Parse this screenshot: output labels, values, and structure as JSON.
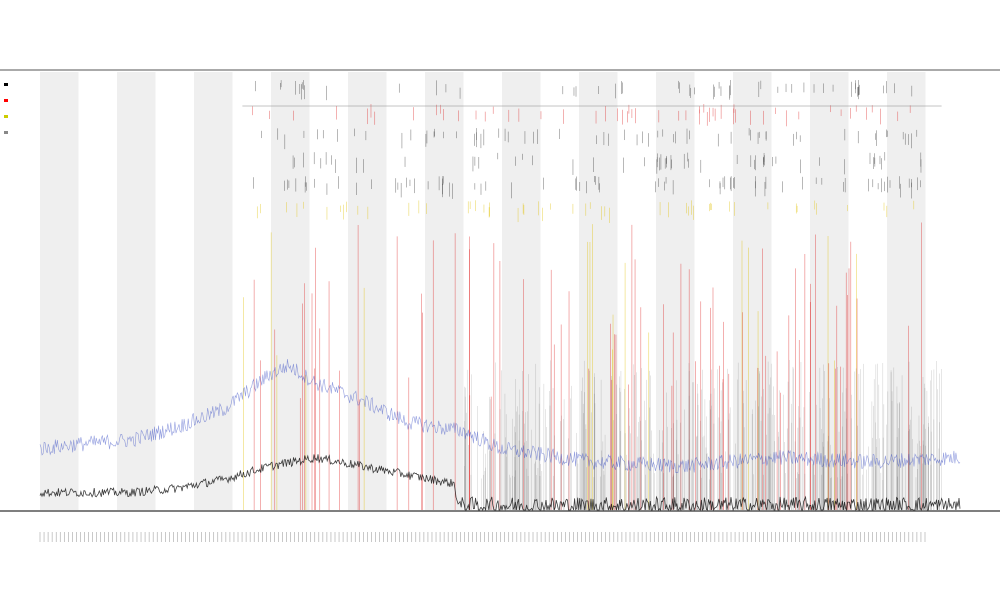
{
  "chart_data": {
    "type": "line",
    "title": "",
    "subtitle_1": "",
    "subtitle_2": "",
    "xlabel": "",
    "ylabel": "",
    "legend": {
      "placement": "top-left",
      "entries": [
        {
          "name": "",
          "color": "#000000"
        },
        {
          "name": "",
          "color": "#ff0000"
        },
        {
          "name": "",
          "color": "#cccc00"
        },
        {
          "name": "",
          "color": "#888888"
        }
      ]
    },
    "grid": false,
    "background_bands": true,
    "series": [
      {
        "name": "",
        "color": "#3b4fc4",
        "style": "noisy-line",
        "profile": [
          [
            0,
            0.14
          ],
          [
            0.04,
            0.15
          ],
          [
            0.1,
            0.16
          ],
          [
            0.15,
            0.19
          ],
          [
            0.2,
            0.23
          ],
          [
            0.25,
            0.31
          ],
          [
            0.27,
            0.33
          ],
          [
            0.3,
            0.29
          ],
          [
            0.35,
            0.25
          ],
          [
            0.4,
            0.2
          ],
          [
            0.46,
            0.18
          ],
          [
            0.5,
            0.14
          ],
          [
            0.6,
            0.11
          ],
          [
            0.7,
            0.1
          ],
          [
            0.8,
            0.12
          ],
          [
            0.9,
            0.11
          ],
          [
            1.0,
            0.12
          ]
        ]
      },
      {
        "name": "",
        "color": "#000000",
        "style": "noisy-line",
        "profile": [
          [
            0,
            0.04
          ],
          [
            0.1,
            0.04
          ],
          [
            0.15,
            0.05
          ],
          [
            0.2,
            0.07
          ],
          [
            0.25,
            0.1
          ],
          [
            0.3,
            0.12
          ],
          [
            0.35,
            0.1
          ],
          [
            0.4,
            0.08
          ],
          [
            0.45,
            0.06
          ],
          [
            0.455,
            0.01
          ],
          [
            1.0,
            0.01
          ]
        ]
      }
    ],
    "highlights": [
      {
        "name": "",
        "color": "#dd2222"
      },
      {
        "name": "",
        "color": "#e0c000"
      }
    ],
    "colors": {
      "band": "#efefef",
      "axis": "#333333",
      "blue": "#3b4fc4",
      "black": "#000000",
      "red": "#dd2222",
      "yellow": "#e0c000"
    }
  }
}
